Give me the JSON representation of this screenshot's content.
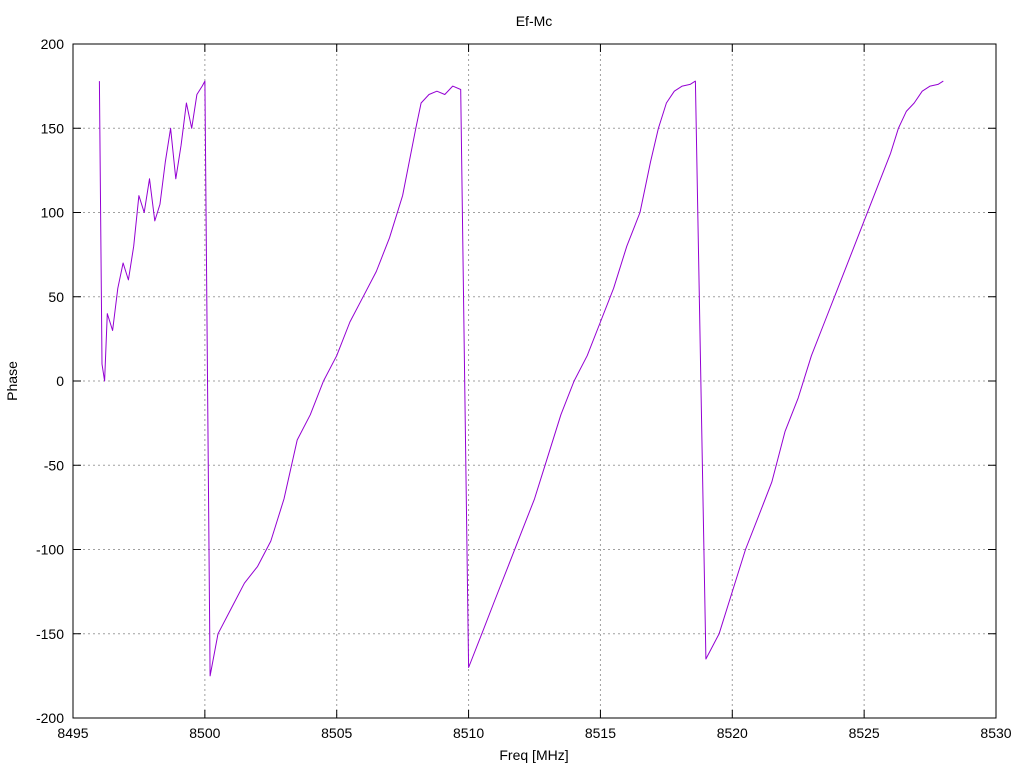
{
  "chart_data": {
    "type": "line",
    "title": "Ef-Mc",
    "xlabel": "Freq [MHz]",
    "ylabel": "Phase",
    "xlim": [
      8495,
      8530
    ],
    "ylim": [
      -200,
      200
    ],
    "x_ticks": [
      8495,
      8500,
      8505,
      8510,
      8515,
      8520,
      8525,
      8530
    ],
    "y_ticks": [
      -200,
      -150,
      -100,
      -50,
      0,
      50,
      100,
      150,
      200
    ],
    "grid": true,
    "legend": "none",
    "series_color": "#9400d3",
    "series": [
      {
        "x": [
          8496.0,
          8496.1,
          8496.2,
          8496.3,
          8496.5,
          8496.7,
          8496.9,
          8497.1,
          8497.3,
          8497.5,
          8497.7,
          8497.9,
          8498.1,
          8498.3,
          8498.5,
          8498.7,
          8498.9,
          8499.1,
          8499.3,
          8499.5,
          8499.7,
          8499.9,
          8500.0,
          8500.2,
          8500.5,
          8501.0,
          8501.5,
          8502.0,
          8502.5,
          8503.0,
          8503.5,
          8504.0,
          8504.5,
          8505.0,
          8505.5,
          8506.0,
          8506.5,
          8507.0,
          8507.5,
          8508.0,
          8508.2,
          8508.5,
          8508.8,
          8509.1,
          8509.4,
          8509.7,
          8510.0,
          8510.5,
          8511.0,
          8511.5,
          8512.0,
          8512.5,
          8513.0,
          8513.5,
          8514.0,
          8514.5,
          8515.0,
          8515.5,
          8516.0,
          8516.5,
          8516.9,
          8517.2,
          8517.5,
          8517.8,
          8518.1,
          8518.4,
          8518.6,
          8519.0,
          8519.5,
          8520.0,
          8520.5,
          8521.0,
          8521.5,
          8522.0,
          8522.5,
          8523.0,
          8523.5,
          8524.0,
          8524.5,
          8525.0,
          8525.5,
          8526.0,
          8526.3,
          8526.6,
          8526.9,
          8527.2,
          8527.5,
          8527.8,
          8528.0
        ],
        "y": [
          178,
          10,
          0,
          40,
          30,
          55,
          70,
          60,
          80,
          110,
          100,
          120,
          95,
          105,
          130,
          150,
          120,
          140,
          165,
          150,
          170,
          175,
          178,
          -175,
          -150,
          -135,
          -120,
          -110,
          -95,
          -70,
          -35,
          -20,
          0,
          15,
          35,
          50,
          65,
          85,
          110,
          150,
          165,
          170,
          172,
          170,
          175,
          173,
          -170,
          -150,
          -130,
          -110,
          -90,
          -70,
          -45,
          -20,
          0,
          15,
          35,
          55,
          80,
          100,
          130,
          150,
          165,
          172,
          175,
          176,
          178,
          -165,
          -150,
          -125,
          -100,
          -80,
          -60,
          -30,
          -10,
          15,
          35,
          55,
          75,
          95,
          115,
          135,
          150,
          160,
          165,
          172,
          175,
          176,
          178
        ]
      }
    ]
  }
}
